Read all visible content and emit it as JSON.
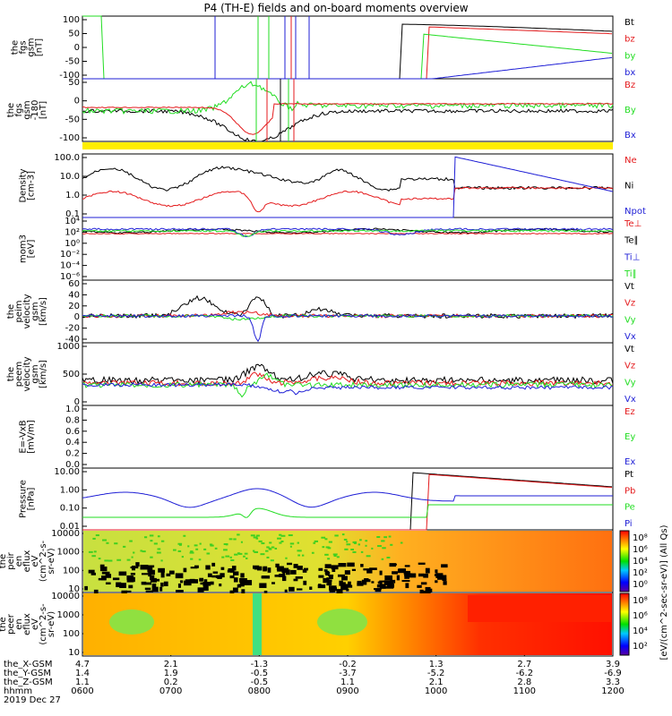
{
  "title": "P4 (TH-E) fields and on-board moments overview",
  "colors": {
    "black": "#000000",
    "red": "#e41a1c",
    "green": "#22dd22",
    "blue": "#1f1fd6",
    "yellow": "#ffee00"
  },
  "chart_data": [
    {
      "type": "line",
      "id": "fgs",
      "ylabel": [
        "the",
        "fgs",
        "gsm",
        "[nT]"
      ],
      "yticks": [
        "100",
        "50",
        "0",
        "-50",
        "-100"
      ],
      "ylim": [
        -100,
        100
      ],
      "series": [
        {
          "name": "Bt",
          "color": "black"
        },
        {
          "name": "bz",
          "color": "red"
        },
        {
          "name": "by",
          "color": "green"
        },
        {
          "name": "bx",
          "color": "blue"
        }
      ]
    },
    {
      "type": "line",
      "id": "fgs-clipped",
      "ylabel": [
        "the",
        "fgs",
        "gsm",
        "-180",
        "[nT]"
      ],
      "yticks": [
        "50",
        "0",
        "-50",
        "-100"
      ],
      "ylim": [
        -130,
        70
      ],
      "series": [
        {
          "name": "Bz",
          "color": "red"
        },
        {
          "name": "By",
          "color": "green"
        },
        {
          "name": "Bx",
          "color": "blue"
        }
      ]
    },
    {
      "type": "line",
      "id": "density",
      "ylabel": [
        "Density",
        "[cm-3]"
      ],
      "yticks": [
        "100.0",
        "10.0",
        "1.0",
        "0.1"
      ],
      "scale": "log",
      "series": [
        {
          "name": "Ne",
          "color": "red"
        },
        {
          "name": "Ni",
          "color": "black"
        },
        {
          "name": "Npot",
          "color": "blue"
        }
      ]
    },
    {
      "type": "line",
      "id": "temperature",
      "ylabel": [
        "mom3",
        "[eV]"
      ],
      "yticks": [
        "10⁴",
        "10²",
        "10⁰",
        "10⁻²",
        "10⁻⁴",
        "10⁻⁶"
      ],
      "scale": "log",
      "series": [
        {
          "name": "Te⊥",
          "color": "red"
        },
        {
          "name": "Te∥",
          "color": "black"
        },
        {
          "name": "Ti⊥",
          "color": "blue"
        },
        {
          "name": "Ti∥",
          "color": "green"
        }
      ]
    },
    {
      "type": "line",
      "id": "peim-velocity",
      "ylabel": [
        "the",
        "peim",
        "velocity",
        "gsm",
        "[km/s]"
      ],
      "yticks": [
        "60",
        "40",
        "20",
        "0",
        "-20",
        "-40"
      ],
      "ylim": [
        -40,
        60
      ],
      "series": [
        {
          "name": "Vt",
          "color": "black"
        },
        {
          "name": "Vz",
          "color": "red"
        },
        {
          "name": "Vy",
          "color": "green"
        },
        {
          "name": "Vx",
          "color": "blue"
        }
      ]
    },
    {
      "type": "line",
      "id": "peem-velocity",
      "ylabel": [
        "the",
        "peem",
        "velocity",
        "gsm",
        "[km/s]"
      ],
      "yticks": [
        "1000",
        "500",
        "0"
      ],
      "ylim": [
        -200,
        1000
      ],
      "series": [
        {
          "name": "Vt",
          "color": "black"
        },
        {
          "name": "Vz",
          "color": "red"
        },
        {
          "name": "Vy",
          "color": "green"
        },
        {
          "name": "Vx",
          "color": "blue"
        }
      ]
    },
    {
      "type": "line",
      "id": "efield",
      "ylabel": [
        "E=-VxB",
        "[mV/m]"
      ],
      "yticks": [
        "1.0",
        "0.8",
        "0.6",
        "0.4",
        "0.2",
        "0.0"
      ],
      "ylim": [
        0,
        1
      ],
      "series": [
        {
          "name": "Ez",
          "color": "red"
        },
        {
          "name": "Ey",
          "color": "green"
        },
        {
          "name": "Ex",
          "color": "blue"
        }
      ]
    },
    {
      "type": "line",
      "id": "pressure",
      "ylabel": [
        "Pressure",
        "[nPa]"
      ],
      "yticks": [
        "10.00",
        "1.00",
        "0.10",
        "0.01"
      ],
      "scale": "log",
      "series": [
        {
          "name": "Pt",
          "color": "black"
        },
        {
          "name": "Pb",
          "color": "red"
        },
        {
          "name": "Pe",
          "color": "green"
        },
        {
          "name": "Pi",
          "color": "blue"
        }
      ]
    },
    {
      "type": "heatmap",
      "id": "peir",
      "ylabel": [
        "the",
        "peir",
        "en",
        "eflux",
        "eV",
        "(cm^2-s-",
        "sr-eV)"
      ],
      "yticks": [
        "10000",
        "1000",
        "100",
        "10"
      ]
    },
    {
      "type": "heatmap",
      "id": "peer",
      "ylabel": [
        "the",
        "peer",
        "en",
        "eflux",
        "eV",
        "(cm^2-s-",
        "sr-eV)"
      ],
      "yticks": [
        "10000",
        "1000",
        "100",
        "10"
      ]
    }
  ],
  "colorbar": {
    "label": "[eV/(cm^2-sec-sr-eV)] (All Qs)",
    "upper_ticks": [
      "10⁸",
      "10⁶",
      "10⁴",
      "10²",
      "10⁰"
    ],
    "lower_ticks": [
      "10⁸",
      "10⁶",
      "10⁴",
      "10²"
    ]
  },
  "xaxis": {
    "rows": [
      {
        "label": "the_X-GSM",
        "values": [
          "4.7",
          "2.1",
          "-1.3",
          "-0.2",
          "1.3",
          "2.7",
          "3.9"
        ]
      },
      {
        "label": "the_Y-GSM",
        "values": [
          "1.4",
          "1.9",
          "-0.5",
          "-3.7",
          "-5.2",
          "-6.2",
          "-6.9"
        ]
      },
      {
        "label": "the_Z-GSM",
        "values": [
          "1.1",
          "0.2",
          "-0.5",
          "1.1",
          "2.1",
          "2.8",
          "3.3"
        ]
      },
      {
        "label": "hhmm",
        "values": [
          "0600",
          "0700",
          "0800",
          "0900",
          "1000",
          "1100",
          "1200"
        ]
      }
    ],
    "date": "2019 Dec 27"
  }
}
